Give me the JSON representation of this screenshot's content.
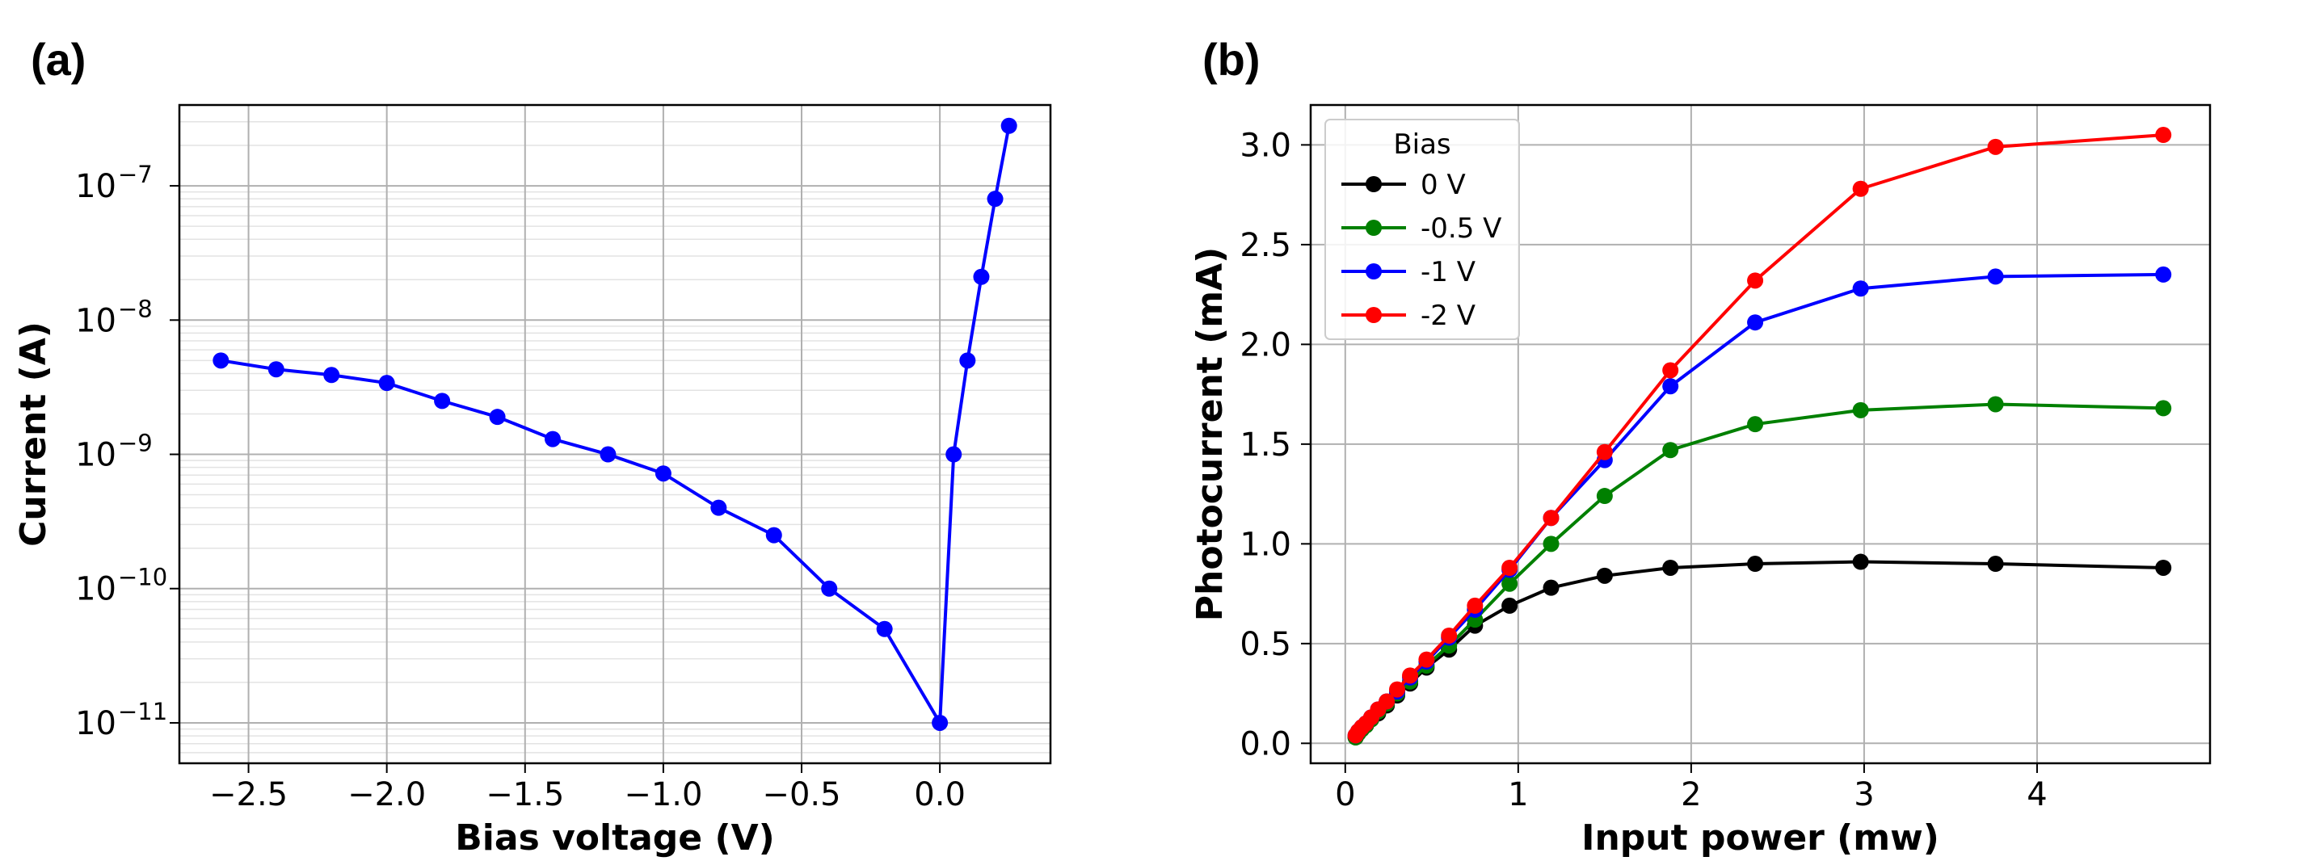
{
  "panels": {
    "a_label": "(a)",
    "b_label": "(b)"
  },
  "chart_data": [
    {
      "type": "line",
      "panel": "(a)",
      "xlabel": "Bias voltage (V)",
      "ylabel": "Current (A)",
      "xlim": [
        -2.75,
        0.4
      ],
      "ylim": [
        5e-12,
        4e-07
      ],
      "yscale": "log",
      "grid": true,
      "minor_grid": true,
      "x_ticks": [
        -2.5,
        -2.0,
        -1.5,
        -1.0,
        -0.5,
        0.0
      ],
      "x_tick_labels": [
        "−2.5",
        "−2.0",
        "−1.5",
        "−1.0",
        "−0.5",
        "0.0"
      ],
      "y_ticks": [
        1e-11,
        1e-10,
        1e-09,
        1e-08,
        1e-07
      ],
      "y_tick_exponents": [
        "−11",
        "−10",
        "−9",
        "−8",
        "−7"
      ],
      "y_tick_base": "10",
      "series": [
        {
          "color": "#0000ff",
          "x": [
            -2.6,
            -2.4,
            -2.2,
            -2.0,
            -1.8,
            -1.6,
            -1.4,
            -1.2,
            -1.0,
            -0.8,
            -0.6,
            -0.4,
            -0.2,
            0.0,
            0.05,
            0.1,
            0.15,
            0.2,
            0.25
          ],
          "y": [
            5e-09,
            4.3e-09,
            3.9e-09,
            3.4e-09,
            2.5e-09,
            1.9e-09,
            1.3e-09,
            1e-09,
            7.2e-10,
            4e-10,
            2.5e-10,
            1e-10,
            5e-11,
            1e-11,
            1e-09,
            5e-09,
            2.1e-08,
            8e-08,
            2.8e-07
          ]
        }
      ]
    },
    {
      "type": "line",
      "panel": "(b)",
      "xlabel": "Input power (mw)",
      "ylabel": "Photocurrent (mA)",
      "xlim": [
        -0.2,
        5.0
      ],
      "ylim": [
        -0.1,
        3.2
      ],
      "grid": true,
      "x_ticks": [
        0,
        1,
        2,
        3,
        4
      ],
      "x_tick_labels": [
        "0",
        "1",
        "2",
        "3",
        "4"
      ],
      "y_ticks": [
        0.0,
        0.5,
        1.0,
        1.5,
        2.0,
        2.5,
        3.0
      ],
      "y_tick_labels": [
        "0.0",
        "0.5",
        "1.0",
        "1.5",
        "2.0",
        "2.5",
        "3.0"
      ],
      "legend": {
        "title": "Bias",
        "position": "top-left"
      },
      "x": [
        0.06,
        0.075,
        0.095,
        0.12,
        0.15,
        0.19,
        0.24,
        0.3,
        0.375,
        0.47,
        0.6,
        0.75,
        0.95,
        1.19,
        1.5,
        1.88,
        2.37,
        2.98,
        3.76,
        4.73
      ],
      "series": [
        {
          "name": "0 V",
          "color": "#000000",
          "values": [
            0.03,
            0.05,
            0.07,
            0.09,
            0.12,
            0.15,
            0.19,
            0.24,
            0.3,
            0.38,
            0.47,
            0.59,
            0.69,
            0.78,
            0.84,
            0.88,
            0.9,
            0.91,
            0.9,
            0.88
          ]
        },
        {
          "name": "-0.5 V",
          "color": "#008000",
          "values": [
            0.03,
            0.05,
            0.07,
            0.09,
            0.12,
            0.16,
            0.2,
            0.25,
            0.31,
            0.39,
            0.49,
            0.62,
            0.8,
            1.0,
            1.24,
            1.47,
            1.6,
            1.67,
            1.7,
            1.68
          ]
        },
        {
          "name": "-1 V",
          "color": "#0000ff",
          "values": [
            0.04,
            0.06,
            0.08,
            0.1,
            0.13,
            0.17,
            0.21,
            0.26,
            0.33,
            0.41,
            0.53,
            0.67,
            0.87,
            1.13,
            1.42,
            1.79,
            2.11,
            2.28,
            2.34,
            2.35
          ]
        },
        {
          "name": "-2 V",
          "color": "#ff0000",
          "values": [
            0.04,
            0.06,
            0.08,
            0.1,
            0.13,
            0.17,
            0.21,
            0.27,
            0.34,
            0.42,
            0.54,
            0.69,
            0.88,
            1.13,
            1.46,
            1.87,
            2.32,
            2.78,
            2.99,
            3.05
          ]
        }
      ]
    }
  ]
}
